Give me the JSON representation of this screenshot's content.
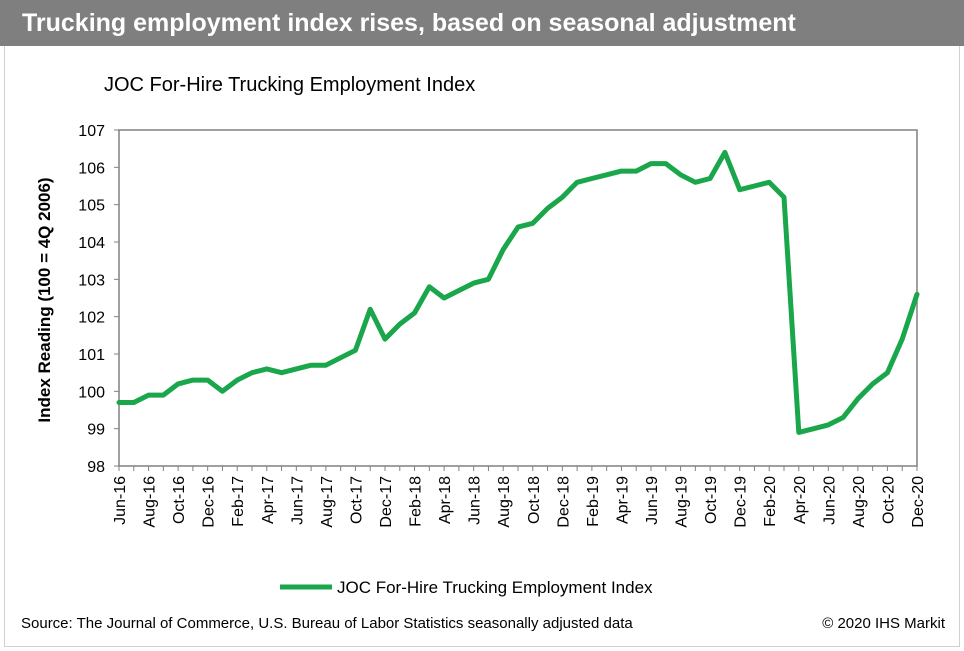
{
  "header": {
    "title": "Trucking employment index rises, based on seasonal adjustment"
  },
  "footer": {
    "source": "Source: The Journal of Commerce, U.S. Bureau of Labor Statistics seasonally adjusted data",
    "copyright": "© 2020 IHS Markit"
  },
  "colors": {
    "header_bg": "#7f7f7f",
    "series": "#1aa64a",
    "axis": "#808080"
  },
  "chart_data": {
    "type": "line",
    "title": "JOC For-Hire Trucking Employment Index",
    "xlabel": "",
    "ylabel": "Index Reading (100 = 4Q 2006)",
    "ylim": [
      98,
      107
    ],
    "yticks": [
      98,
      99,
      100,
      101,
      102,
      103,
      104,
      105,
      106,
      107
    ],
    "grid": false,
    "legend_position": "bottom",
    "x": [
      "Jun-16",
      "Jul-16",
      "Aug-16",
      "Sep-16",
      "Oct-16",
      "Nov-16",
      "Dec-16",
      "Jan-17",
      "Feb-17",
      "Mar-17",
      "Apr-17",
      "May-17",
      "Jun-17",
      "Jul-17",
      "Aug-17",
      "Sep-17",
      "Oct-17",
      "Nov-17",
      "Dec-17",
      "Jan-18",
      "Feb-18",
      "Mar-18",
      "Apr-18",
      "May-18",
      "Jun-18",
      "Jul-18",
      "Aug-18",
      "Sep-18",
      "Oct-18",
      "Nov-18",
      "Dec-18",
      "Jan-19",
      "Feb-19",
      "Mar-19",
      "Apr-19",
      "May-19",
      "Jun-19",
      "Jul-19",
      "Aug-19",
      "Sep-19",
      "Oct-19",
      "Nov-19",
      "Dec-19",
      "Jan-20",
      "Feb-20",
      "Mar-20",
      "Apr-20",
      "May-20",
      "Jun-20",
      "Jul-20",
      "Aug-20",
      "Sep-20",
      "Oct-20",
      "Nov-20",
      "Dec-20"
    ],
    "x_tick_labels": [
      "Jun-16",
      "Aug-16",
      "Oct-16",
      "Dec-16",
      "Feb-17",
      "Apr-17",
      "Jun-17",
      "Aug-17",
      "Oct-17",
      "Dec-17",
      "Feb-18",
      "Apr-18",
      "Jun-18",
      "Aug-18",
      "Oct-18",
      "Dec-18",
      "Feb-19",
      "Apr-19",
      "Jun-19",
      "Aug-19",
      "Oct-19",
      "Dec-19",
      "Feb-20",
      "Apr-20",
      "Jun-20",
      "Aug-20",
      "Oct-20",
      "Dec-20"
    ],
    "series": [
      {
        "name": "JOC For-Hire Trucking Employment Index",
        "values": [
          99.7,
          99.7,
          99.9,
          99.9,
          100.2,
          100.3,
          100.3,
          100.0,
          100.3,
          100.5,
          100.6,
          100.5,
          100.6,
          100.7,
          100.7,
          100.9,
          101.1,
          102.2,
          101.4,
          101.8,
          102.1,
          102.8,
          102.5,
          102.7,
          102.9,
          103.0,
          103.8,
          104.4,
          104.5,
          104.9,
          105.2,
          105.6,
          105.7,
          105.8,
          105.9,
          105.9,
          106.1,
          106.1,
          105.8,
          105.6,
          105.7,
          106.4,
          105.4,
          105.5,
          105.6,
          105.2,
          98.9,
          99.0,
          99.1,
          99.3,
          99.8,
          100.2,
          100.5,
          101.4,
          102.6
        ]
      }
    ]
  }
}
